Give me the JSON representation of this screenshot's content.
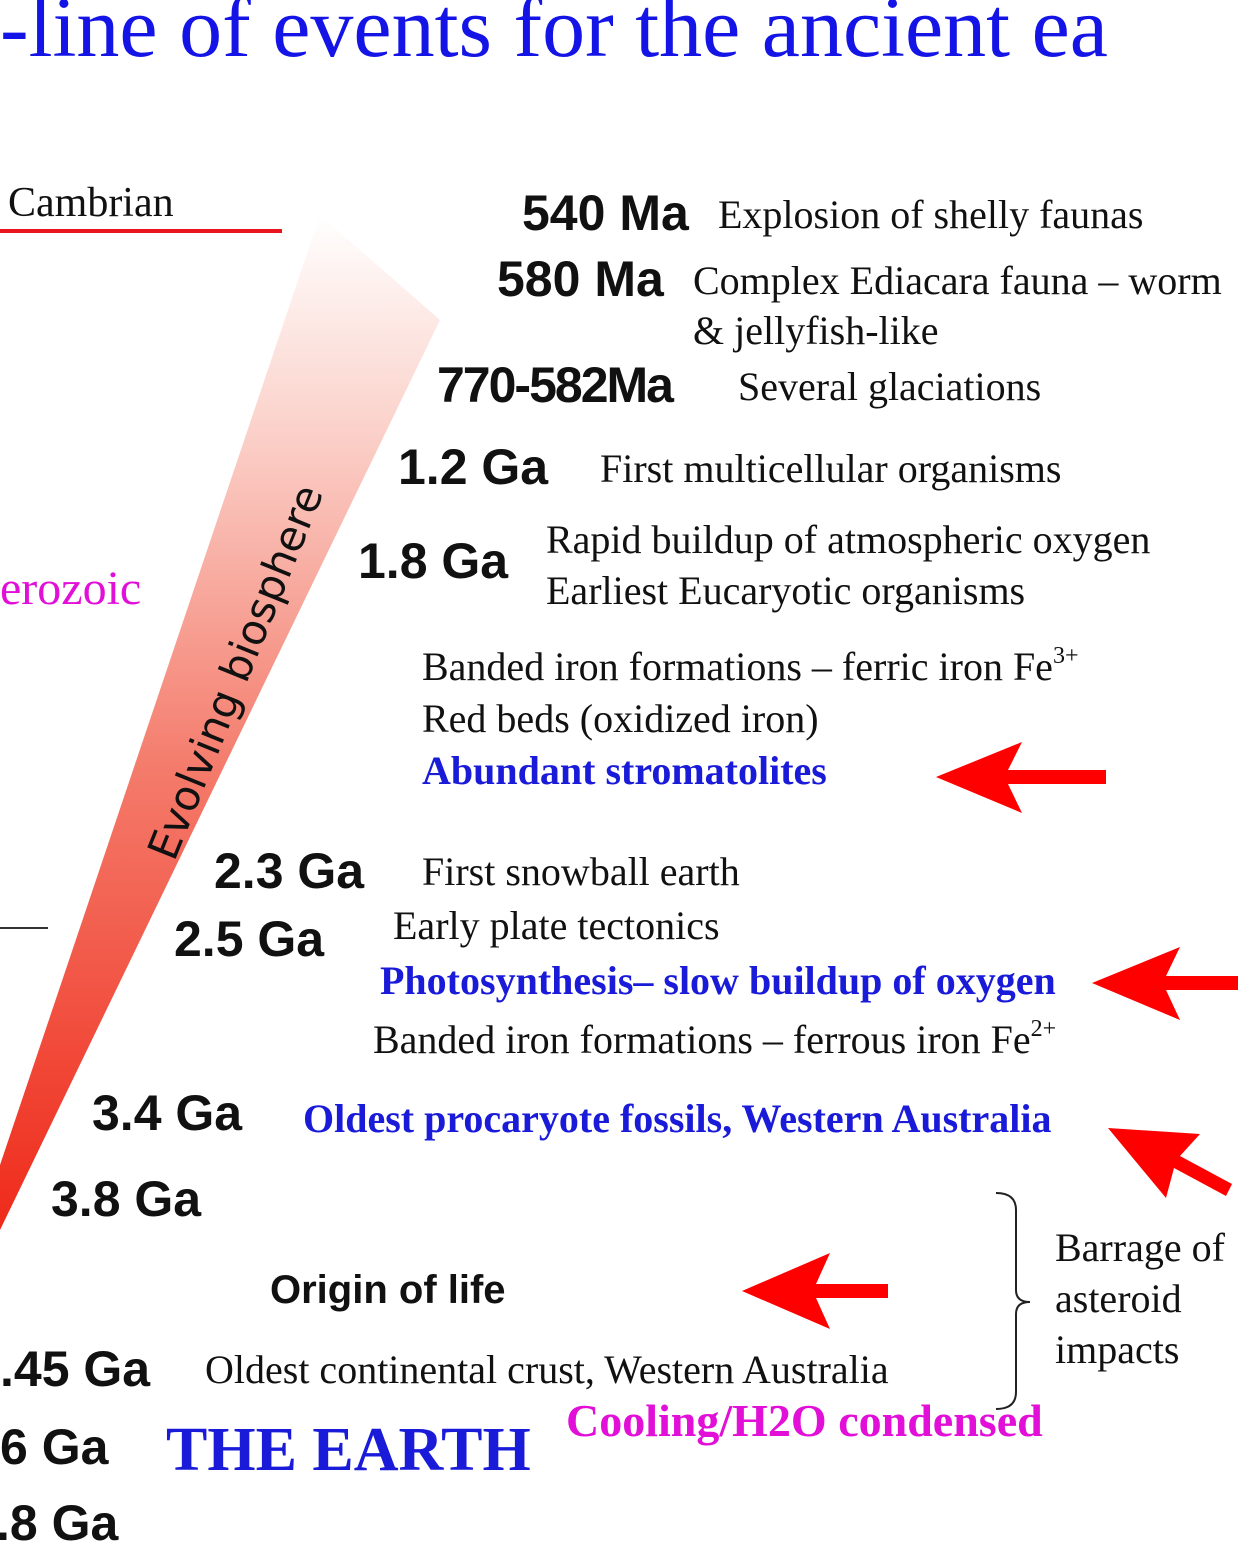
{
  "title": "-line of events for the ancient ea",
  "eras": {
    "cambrian": "Cambrian",
    "proterozoic": "erozoic"
  },
  "biosphere_label": "Evolving biosphere",
  "events": [
    {
      "age": "540 Ma",
      "text": "Explosion of shelly faunas"
    },
    {
      "age": "580 Ma",
      "text": "Complex Ediacara fauna – worm",
      "text2": "& jellyfish-like"
    },
    {
      "age": "770-582Ma",
      "text": "Several glaciations"
    },
    {
      "age": "1.2 Ga",
      "text": "First multicellular organisms"
    },
    {
      "age": "1.8 Ga",
      "text": "Rapid buildup of atmospheric oxygen",
      "text2": "Earliest Eucaryotic organisms"
    },
    {
      "text": "Banded iron formations –  ferric iron Fe",
      "sup": "3+"
    },
    {
      "text": "Red beds (oxidized iron)"
    },
    {
      "text": "Abundant stromatolites"
    },
    {
      "age": "2.3 Ga",
      "text": "First snowball earth"
    },
    {
      "age": "2.5 Ga",
      "text": "Early plate tectonics"
    },
    {
      "text": "Photosynthesis– slow buildup of oxygen"
    },
    {
      "text": "Banded iron formations –  ferrous iron Fe",
      "sup": "2+"
    },
    {
      "age": "3.4 Ga",
      "text": "Oldest procaryote fossils, Western Australia"
    },
    {
      "age": "3.8 Ga"
    },
    {
      "text": "Origin of life"
    },
    {
      "age": ".45 Ga",
      "text": "Oldest continental crust, Western Australia"
    },
    {
      "age": "6 Ga",
      "text": "THE EARTH"
    },
    {
      "age": ".8 Ga"
    }
  ],
  "cooling": "Cooling/H2O condensed",
  "asteroid": {
    "line1": "Barrage of",
    "line2": "asteroid",
    "line3": "impacts"
  },
  "colors": {
    "title": "#1414e6",
    "blue_text": "#1a1ad9",
    "magenta": "#e10fd7",
    "arrow": "#ff0000",
    "wedge": "#f0301e"
  }
}
